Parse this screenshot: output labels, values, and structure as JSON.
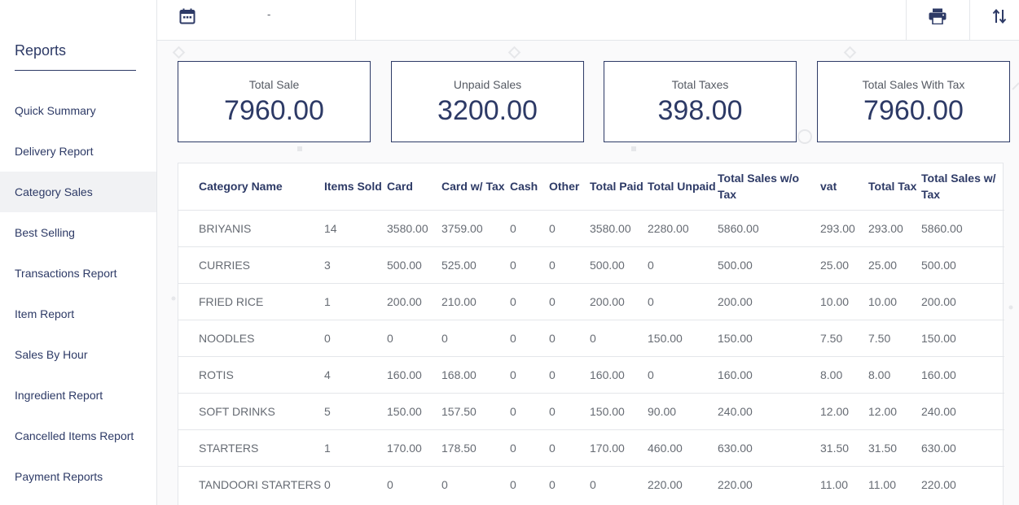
{
  "sidebar": {
    "title": "Reports",
    "items": [
      {
        "label": "Quick Summary",
        "active": false
      },
      {
        "label": "Delivery Report",
        "active": false
      },
      {
        "label": "Category Sales",
        "active": true
      },
      {
        "label": "Best Selling",
        "active": false
      },
      {
        "label": "Transactions Report",
        "active": false
      },
      {
        "label": "Item Report",
        "active": false
      },
      {
        "label": "Sales By Hour",
        "active": false
      },
      {
        "label": "Ingredient Report",
        "active": false
      },
      {
        "label": "Cancelled Items Report",
        "active": false
      },
      {
        "label": "Payment Reports",
        "active": false
      }
    ]
  },
  "topbar": {
    "date_separator": "-",
    "icons": {
      "calendar": "calendar-icon",
      "print": "print-icon",
      "sort": "sort-icon"
    }
  },
  "summary": {
    "cards": [
      {
        "label": "Total Sale",
        "value": "7960.00"
      },
      {
        "label": "Unpaid Sales",
        "value": "3200.00"
      },
      {
        "label": "Total Taxes",
        "value": "398.00"
      },
      {
        "label": "Total Sales With Tax",
        "value": "7960.00"
      }
    ]
  },
  "table": {
    "headers": [
      "Category Name",
      "Items Sold",
      "Card",
      "Card w/ Tax",
      "Cash",
      "Other",
      "Total Paid",
      "Total Unpaid",
      "Total Sales w/o Tax",
      "vat",
      "Total Tax",
      "Total Sales w/ Tax"
    ],
    "rows": [
      [
        "BRIYANIS",
        "14",
        "3580.00",
        "3759.00",
        "0",
        "0",
        "3580.00",
        "2280.00",
        "5860.00",
        "293.00",
        "293.00",
        "5860.00"
      ],
      [
        "CURRIES",
        "3",
        "500.00",
        "525.00",
        "0",
        "0",
        "500.00",
        "0",
        "500.00",
        "25.00",
        "25.00",
        "500.00"
      ],
      [
        "FRIED RICE",
        "1",
        "200.00",
        "210.00",
        "0",
        "0",
        "200.00",
        "0",
        "200.00",
        "10.00",
        "10.00",
        "200.00"
      ],
      [
        "NOODLES",
        "0",
        "0",
        "0",
        "0",
        "0",
        "0",
        "150.00",
        "150.00",
        "7.50",
        "7.50",
        "150.00"
      ],
      [
        "ROTIS",
        "4",
        "160.00",
        "168.00",
        "0",
        "0",
        "160.00",
        "0",
        "160.00",
        "8.00",
        "8.00",
        "160.00"
      ],
      [
        "SOFT DRINKS",
        "5",
        "150.00",
        "157.50",
        "0",
        "0",
        "150.00",
        "90.00",
        "240.00",
        "12.00",
        "12.00",
        "240.00"
      ],
      [
        "STARTERS",
        "1",
        "170.00",
        "178.50",
        "0",
        "0",
        "170.00",
        "460.00",
        "630.00",
        "31.50",
        "31.50",
        "630.00"
      ],
      [
        "TANDOORI STARTERS",
        "0",
        "0",
        "0",
        "0",
        "0",
        "0",
        "220.00",
        "220.00",
        "11.00",
        "11.00",
        "220.00"
      ]
    ]
  },
  "colors": {
    "brand": "#2d3a66",
    "text": "#555a63",
    "border": "#e4e6ea",
    "active_bg": "#f1f2f4",
    "content_bg": "#fafafb"
  }
}
